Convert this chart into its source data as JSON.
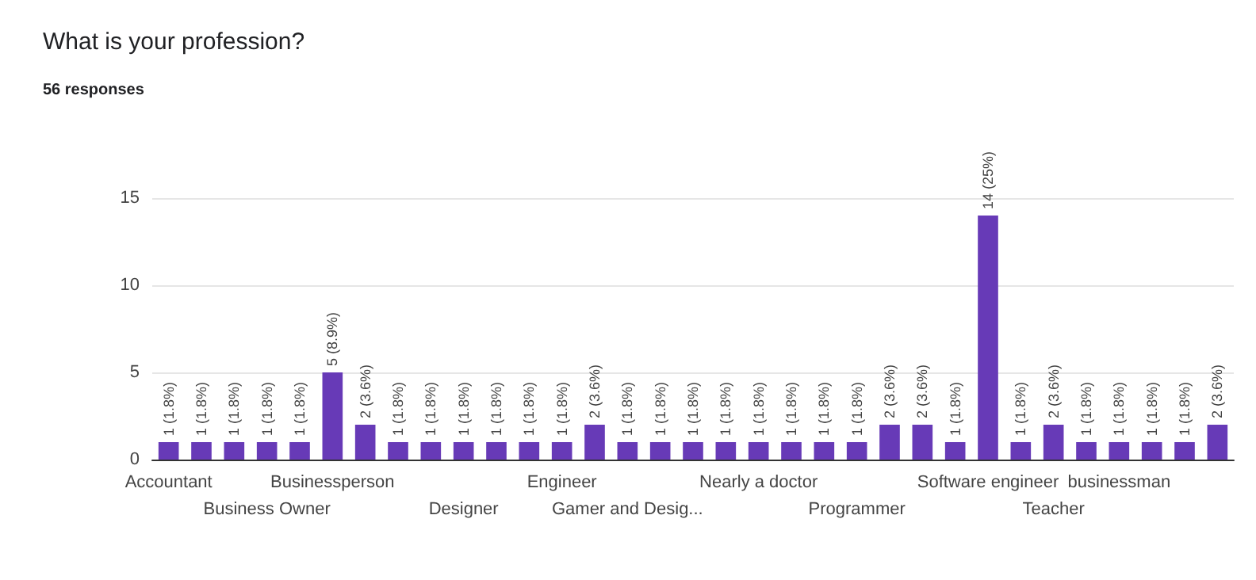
{
  "chart_data": {
    "type": "bar",
    "title": "What is your profession?",
    "subtitle": "56 responses",
    "categories": [
      "Accountant",
      null,
      null,
      "Business Owner",
      null,
      "Businessperson",
      null,
      null,
      null,
      "Designer",
      null,
      null,
      "Engineer",
      null,
      "Gamer and Desig...",
      null,
      null,
      null,
      "Nearly a doctor",
      null,
      null,
      "Programmer",
      null,
      null,
      null,
      "Software engineer",
      null,
      "Teacher",
      null,
      "businessman",
      null,
      null,
      null
    ],
    "values": [
      1,
      1,
      1,
      1,
      1,
      5,
      2,
      1,
      1,
      1,
      1,
      1,
      1,
      2,
      1,
      1,
      1,
      1,
      1,
      1,
      1,
      1,
      2,
      2,
      1,
      14,
      1,
      2,
      1,
      1,
      1,
      1,
      2
    ],
    "value_labels": [
      "1 (1.8%)",
      "1 (1.8%)",
      "1 (1.8%)",
      "1 (1.8%)",
      "1 (1.8%)",
      "5 (8.9%)",
      "2 (3.6%)",
      "1 (1.8%)",
      "1 (1.8%)",
      "1 (1.8%)",
      "1 (1.8%)",
      "1 (1.8%)",
      "1 (1.8%)",
      "2 (3.6%)",
      "1 (1.8%)",
      "1 (1.8%)",
      "1 (1.8%)",
      "1 (1.8%)",
      "1 (1.8%)",
      "1 (1.8%)",
      "1 (1.8%)",
      "1 (1.8%)",
      "2 (3.6%)",
      "2 (3.6%)",
      "1 (1.8%)",
      "14 (25%)",
      "1 (1.8%)",
      "2 (3.6%)",
      "1 (1.8%)",
      "1 (1.8%)",
      "1 (1.8%)",
      "1 (1.8%)",
      "2 (3.6%)"
    ],
    "color": "#673ab7",
    "ylim": [
      0,
      15
    ],
    "yticks": [
      0,
      5,
      10,
      15
    ],
    "grid": "y"
  }
}
